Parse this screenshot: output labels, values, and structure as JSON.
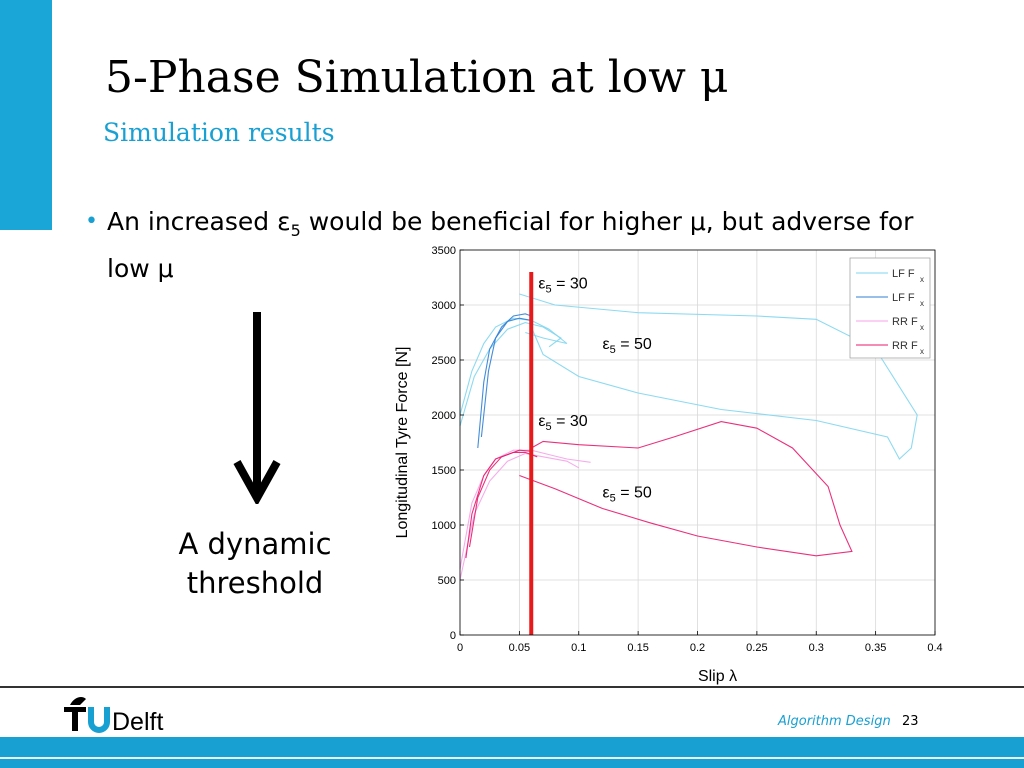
{
  "slide": {
    "title": "5-Phase Simulation at low μ",
    "subtitle": "Simulation results",
    "bullet_text": "An increased ε",
    "bullet_sub": "5",
    "bullet_text_after": " would be beneficial for higher μ, but adverse for low μ",
    "arrow_caption_1": "A dynamic",
    "arrow_caption_2": "threshold",
    "footer_label": "Algorithm Design",
    "page_number": "23",
    "logo_text": "TUDelft"
  },
  "colors": {
    "accent": "#19a0d2",
    "threshold_line": "#e8191b",
    "lf_light": "#7fd6f0",
    "lf_dark": "#2f7fd6",
    "rr_light": "#f4a3e8",
    "rr_dark": "#e8196e"
  },
  "chart_data": {
    "type": "line",
    "xlabel": "Slip λ",
    "ylabel": "Longitudinal Tyre Force [N]",
    "xlim": [
      0,
      0.4
    ],
    "ylim": [
      0,
      3500
    ],
    "xticks": [
      "0",
      "0.05",
      "0.1",
      "0.15",
      "0.2",
      "0.25",
      "0.3",
      "0.35",
      "0.4"
    ],
    "yticks": [
      "0",
      "500",
      "1000",
      "1500",
      "2000",
      "2500",
      "3000",
      "3500"
    ],
    "grid": true,
    "legend_position": "top-right",
    "legend": [
      {
        "label": "LF F",
        "sub": "x",
        "color": "#7fd6f0"
      },
      {
        "label": "LF F",
        "sub": "x",
        "color": "#2f7fd6"
      },
      {
        "label": "RR F",
        "sub": "x",
        "color": "#f4a3e8"
      },
      {
        "label": "RR F",
        "sub": "x",
        "color": "#e8196e"
      }
    ],
    "threshold_x": 0.06,
    "annotations": [
      {
        "text": "ε",
        "sub": "5",
        "value": " = 30",
        "x": 0.066,
        "y": 3150
      },
      {
        "text": "ε",
        "sub": "5",
        "value": " = 50",
        "x": 0.12,
        "y": 2600
      },
      {
        "text": "ε",
        "sub": "5",
        "value": " = 30",
        "x": 0.066,
        "y": 1900
      },
      {
        "text": "ε",
        "sub": "5",
        "value": " = 50",
        "x": 0.12,
        "y": 1250
      }
    ],
    "series": [
      {
        "color": "#7fd6f0",
        "points": [
          [
            0.0,
            2000
          ],
          [
            0.01,
            2400
          ],
          [
            0.02,
            2650
          ],
          [
            0.03,
            2800
          ],
          [
            0.045,
            2880
          ],
          [
            0.06,
            2860
          ],
          [
            0.075,
            2780
          ],
          [
            0.09,
            2650
          ],
          [
            0.07,
            2700
          ],
          [
            0.055,
            2750
          ]
        ]
      },
      {
        "color": "#7fd6f0",
        "points": [
          [
            0.0,
            1900
          ],
          [
            0.012,
            2350
          ],
          [
            0.025,
            2600
          ],
          [
            0.04,
            2780
          ],
          [
            0.055,
            2840
          ],
          [
            0.07,
            2800
          ],
          [
            0.085,
            2700
          ],
          [
            0.075,
            2620
          ]
        ]
      },
      {
        "color": "#2f7fd6",
        "points": [
          [
            0.015,
            1700
          ],
          [
            0.02,
            2300
          ],
          [
            0.025,
            2600
          ],
          [
            0.035,
            2800
          ],
          [
            0.045,
            2900
          ],
          [
            0.055,
            2920
          ],
          [
            0.06,
            2900
          ]
        ]
      },
      {
        "color": "#2f7fd6",
        "points": [
          [
            0.018,
            1800
          ],
          [
            0.024,
            2400
          ],
          [
            0.03,
            2700
          ],
          [
            0.04,
            2850
          ],
          [
            0.05,
            2880
          ],
          [
            0.06,
            2860
          ]
        ]
      },
      {
        "color": "#7fd6f0",
        "points": [
          [
            0.05,
            3100
          ],
          [
            0.08,
            3000
          ],
          [
            0.15,
            2930
          ],
          [
            0.25,
            2900
          ],
          [
            0.3,
            2870
          ],
          [
            0.35,
            2600
          ],
          [
            0.385,
            2000
          ],
          [
            0.38,
            1700
          ],
          [
            0.37,
            1600
          ],
          [
            0.36,
            1800
          ],
          [
            0.3,
            1950
          ],
          [
            0.22,
            2050
          ],
          [
            0.15,
            2200
          ],
          [
            0.1,
            2350
          ],
          [
            0.07,
            2550
          ],
          [
            0.06,
            2800
          ]
        ]
      },
      {
        "color": "#f4a3e8",
        "points": [
          [
            0.0,
            600
          ],
          [
            0.01,
            1200
          ],
          [
            0.02,
            1450
          ],
          [
            0.03,
            1600
          ],
          [
            0.045,
            1680
          ],
          [
            0.06,
            1680
          ],
          [
            0.075,
            1640
          ],
          [
            0.09,
            1600
          ],
          [
            0.11,
            1570
          ]
        ]
      },
      {
        "color": "#f4a3e8",
        "points": [
          [
            0.0,
            500
          ],
          [
            0.012,
            1100
          ],
          [
            0.025,
            1400
          ],
          [
            0.04,
            1580
          ],
          [
            0.055,
            1650
          ],
          [
            0.07,
            1620
          ],
          [
            0.09,
            1580
          ],
          [
            0.1,
            1520
          ]
        ]
      },
      {
        "color": "#e8196e",
        "points": [
          [
            0.005,
            700
          ],
          [
            0.01,
            1100
          ],
          [
            0.02,
            1450
          ],
          [
            0.03,
            1600
          ],
          [
            0.045,
            1660
          ],
          [
            0.055,
            1660
          ],
          [
            0.065,
            1620
          ]
        ]
      },
      {
        "color": "#e8196e",
        "points": [
          [
            0.008,
            800
          ],
          [
            0.015,
            1250
          ],
          [
            0.025,
            1500
          ],
          [
            0.035,
            1620
          ],
          [
            0.05,
            1680
          ],
          [
            0.06,
            1670
          ]
        ]
      },
      {
        "color": "#e8196e",
        "points": [
          [
            0.05,
            1450
          ],
          [
            0.08,
            1330
          ],
          [
            0.12,
            1150
          ],
          [
            0.16,
            1020
          ],
          [
            0.2,
            900
          ],
          [
            0.25,
            800
          ],
          [
            0.3,
            720
          ],
          [
            0.33,
            760
          ],
          [
            0.32,
            1000
          ],
          [
            0.31,
            1350
          ],
          [
            0.28,
            1700
          ],
          [
            0.25,
            1880
          ],
          [
            0.22,
            1940
          ],
          [
            0.18,
            1800
          ],
          [
            0.15,
            1700
          ],
          [
            0.1,
            1730
          ],
          [
            0.07,
            1760
          ],
          [
            0.06,
            1700
          ]
        ]
      }
    ]
  }
}
